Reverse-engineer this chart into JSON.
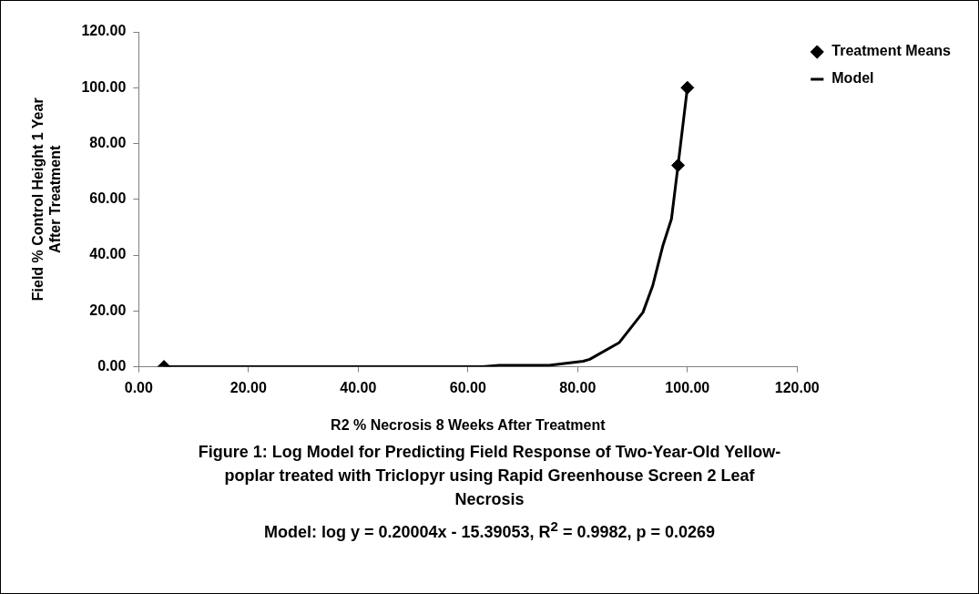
{
  "chart_data": {
    "type": "scatter",
    "xlabel": "R2 % Necrosis 8 Weeks After Treatment",
    "ylabel": "Field % Control Height 1 Year After Treatment",
    "xlim": [
      0,
      120
    ],
    "ylim": [
      0,
      120
    ],
    "xticks": [
      {
        "value": 0,
        "label": "0.00"
      },
      {
        "value": 20,
        "label": "20.00"
      },
      {
        "value": 40,
        "label": "40.00"
      },
      {
        "value": 60,
        "label": "60.00"
      },
      {
        "value": 80,
        "label": "80.00"
      },
      {
        "value": 100,
        "label": "100.00"
      },
      {
        "value": 120,
        "label": "120.00"
      }
    ],
    "yticks": [
      {
        "value": 0,
        "label": "0.00"
      },
      {
        "value": 20,
        "label": "20.00"
      },
      {
        "value": 40,
        "label": "40.00"
      },
      {
        "value": 60,
        "label": "60.00"
      },
      {
        "value": 80,
        "label": "80.00"
      },
      {
        "value": 100,
        "label": "100.00"
      },
      {
        "value": 120,
        "label": "120.00"
      }
    ],
    "grid": false,
    "legend": "top right",
    "series": [
      {
        "name": "Treatment Means",
        "type": "scatter",
        "color": "#000000",
        "marker": "diamond",
        "x": [
          4.6,
          98.3,
          100
        ],
        "values": [
          0,
          72.2,
          100
        ]
      },
      {
        "name": "Model",
        "type": "line",
        "color": "#000000",
        "marker": "none",
        "line_style": "solid",
        "x": [
          4.6,
          62.7,
          65.7,
          74.8,
          81,
          82.2,
          87.6,
          91.9,
          93.7,
          95.5,
          97.1,
          98.3,
          100
        ],
        "values": [
          0,
          0,
          0.5,
          0.5,
          2,
          2.7,
          8.7,
          19.5,
          29.2,
          43.2,
          53,
          72.2,
          100
        ]
      }
    ],
    "annotations": [
      "Figure 1:  Log Model for Predicting Field Response of Two-Year-Old Yellow-poplar treated with Triclopyr using Rapid Greenhouse Screen 2 Leaf Necrosis",
      "Model: log y = 0.20004x - 15.39053, R$^{2}$ = 0.9982, p = 0.0269"
    ]
  }
}
